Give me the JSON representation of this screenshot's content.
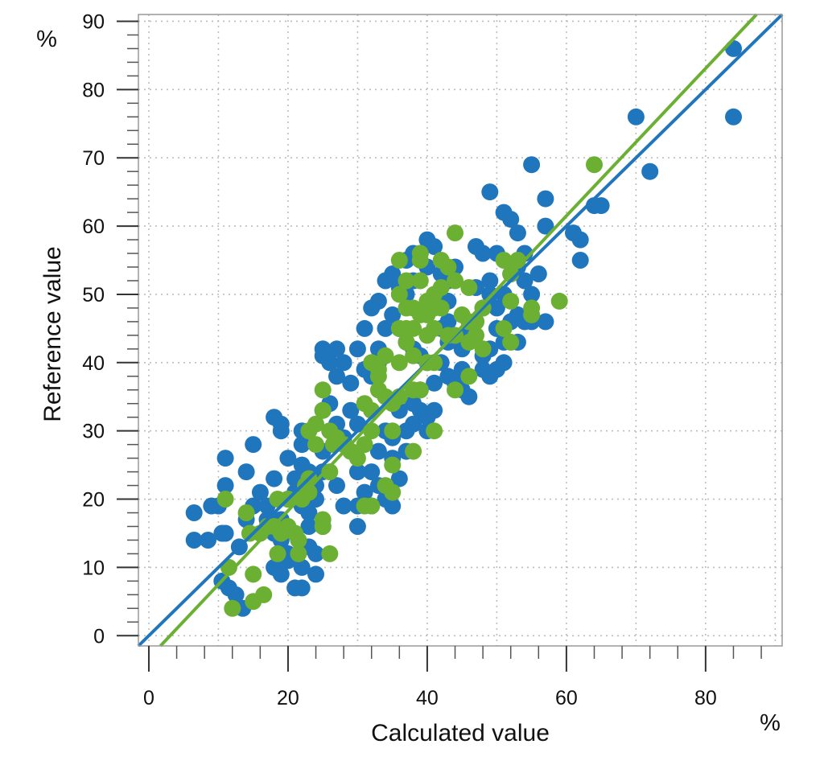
{
  "chart_data": {
    "type": "scatter",
    "xlabel": "Calculated value",
    "ylabel": "Reference value",
    "x_unit": "%",
    "y_unit": "%",
    "xlim": [
      -1.5,
      91
    ],
    "ylim": [
      -1.5,
      91
    ],
    "x_ticks": [
      0,
      20,
      40,
      60,
      80
    ],
    "y_ticks": [
      0,
      10,
      20,
      30,
      40,
      50,
      60,
      70,
      80,
      90
    ],
    "grid": true,
    "legend": "none",
    "series": [
      {
        "color": "#1f76bd",
        "fit_line": {
          "slope": 1.0,
          "intercept": 0.0
        },
        "points": [
          [
            6.5,
            18
          ],
          [
            6.5,
            14
          ],
          [
            8.5,
            14
          ],
          [
            9,
            19
          ],
          [
            10,
            19
          ],
          [
            10.5,
            15
          ],
          [
            11,
            15
          ],
          [
            11,
            22
          ],
          [
            11,
            26
          ],
          [
            10.5,
            8
          ],
          [
            11.5,
            7
          ],
          [
            12.5,
            6
          ],
          [
            13.5,
            4
          ],
          [
            14,
            24
          ],
          [
            15,
            28
          ],
          [
            13,
            13
          ],
          [
            14,
            17
          ],
          [
            15,
            19
          ],
          [
            16,
            21
          ],
          [
            17,
            19
          ],
          [
            18,
            23
          ],
          [
            17,
            17
          ],
          [
            18,
            15
          ],
          [
            19,
            14
          ],
          [
            20,
            12
          ],
          [
            18,
            10
          ],
          [
            19,
            9
          ],
          [
            20,
            11
          ],
          [
            21,
            7
          ],
          [
            22,
            7
          ],
          [
            22,
            10
          ],
          [
            23,
            13
          ],
          [
            23,
            16
          ],
          [
            24,
            9
          ],
          [
            24,
            12
          ],
          [
            25,
            16
          ],
          [
            19,
            17
          ],
          [
            20,
            20
          ],
          [
            21,
            23
          ],
          [
            22,
            25
          ],
          [
            23,
            24
          ],
          [
            22,
            28
          ],
          [
            22,
            30
          ],
          [
            20,
            26
          ],
          [
            19,
            31
          ],
          [
            18,
            32
          ],
          [
            19,
            30
          ],
          [
            21,
            21
          ],
          [
            22,
            19
          ],
          [
            23,
            18
          ],
          [
            24,
            20
          ],
          [
            24,
            22
          ],
          [
            25,
            24
          ],
          [
            25,
            27
          ],
          [
            26,
            30
          ],
          [
            27,
            31
          ],
          [
            25,
            33
          ],
          [
            26,
            34
          ],
          [
            27,
            38
          ],
          [
            25,
            41
          ],
          [
            25,
            42
          ],
          [
            27,
            42
          ],
          [
            26,
            40
          ],
          [
            28,
            40
          ],
          [
            29,
            37
          ],
          [
            29,
            33
          ],
          [
            30,
            31
          ],
          [
            28,
            29
          ],
          [
            29,
            27
          ],
          [
            30,
            24
          ],
          [
            31,
            21
          ],
          [
            30,
            19
          ],
          [
            30,
            16
          ],
          [
            28,
            19
          ],
          [
            27,
            22
          ],
          [
            32,
            19
          ],
          [
            33,
            22
          ],
          [
            32,
            24
          ],
          [
            33,
            27
          ],
          [
            34,
            30
          ],
          [
            35,
            29
          ],
          [
            35,
            26
          ],
          [
            36,
            23
          ],
          [
            35,
            19
          ],
          [
            34,
            20
          ],
          [
            36,
            33
          ],
          [
            37,
            30
          ],
          [
            37,
            27
          ],
          [
            38,
            31
          ],
          [
            38,
            34
          ],
          [
            39,
            33
          ],
          [
            39,
            36
          ],
          [
            40,
            32
          ],
          [
            40,
            30
          ],
          [
            41,
            33
          ],
          [
            41,
            37
          ],
          [
            40,
            40
          ],
          [
            39,
            41
          ],
          [
            38,
            42
          ],
          [
            37,
            43
          ],
          [
            36,
            45
          ],
          [
            35,
            47
          ],
          [
            34,
            45
          ],
          [
            33,
            42
          ],
          [
            33,
            40
          ],
          [
            32,
            38
          ],
          [
            31,
            39
          ],
          [
            30,
            42
          ],
          [
            31,
            45
          ],
          [
            32,
            48
          ],
          [
            33,
            49
          ],
          [
            34,
            52
          ],
          [
            35,
            53
          ],
          [
            36,
            51
          ],
          [
            37,
            50
          ],
          [
            38,
            52
          ],
          [
            37,
            55
          ],
          [
            38,
            56
          ],
          [
            39,
            56
          ],
          [
            40,
            58
          ],
          [
            41,
            57
          ],
          [
            40,
            54
          ],
          [
            42,
            53
          ],
          [
            43,
            52
          ],
          [
            44,
            54
          ],
          [
            43,
            49
          ],
          [
            43,
            46
          ],
          [
            42,
            45
          ],
          [
            43,
            43
          ],
          [
            42,
            40
          ],
          [
            43,
            38
          ],
          [
            44,
            37
          ],
          [
            45,
            36
          ],
          [
            46,
            35
          ],
          [
            45,
            39
          ],
          [
            45,
            42
          ],
          [
            46,
            44
          ],
          [
            47,
            46
          ],
          [
            48,
            48
          ],
          [
            47,
            51
          ],
          [
            47,
            57
          ],
          [
            48,
            56
          ],
          [
            49,
            52
          ],
          [
            49,
            50
          ],
          [
            50,
            48
          ],
          [
            50,
            45
          ],
          [
            49,
            42
          ],
          [
            48,
            41
          ],
          [
            48,
            39
          ],
          [
            49,
            38
          ],
          [
            50,
            39
          ],
          [
            51,
            40
          ],
          [
            51,
            43
          ],
          [
            52,
            46
          ],
          [
            51,
            50
          ],
          [
            52,
            53
          ],
          [
            50,
            56
          ],
          [
            51,
            62
          ],
          [
            49,
            65
          ],
          [
            52,
            61
          ],
          [
            53,
            59
          ],
          [
            54,
            56
          ],
          [
            53,
            54
          ],
          [
            54,
            52
          ],
          [
            53,
            47
          ],
          [
            54,
            46
          ],
          [
            53,
            43
          ],
          [
            55,
            46
          ],
          [
            55,
            50
          ],
          [
            56,
            53
          ],
          [
            55,
            69
          ],
          [
            57,
            64
          ],
          [
            57,
            60
          ],
          [
            57,
            46
          ],
          [
            61,
            59
          ],
          [
            62,
            58
          ],
          [
            62,
            55
          ],
          [
            64,
            63
          ],
          [
            65,
            63
          ],
          [
            70,
            76
          ],
          [
            72,
            68
          ],
          [
            84,
            86
          ],
          [
            84,
            76
          ]
        ]
      },
      {
        "color": "#6cb033",
        "fit_line": {
          "slope": 1.08,
          "intercept": -3.3
        },
        "points": [
          [
            11,
            20
          ],
          [
            11.5,
            10
          ],
          [
            12,
            4
          ],
          [
            14,
            18
          ],
          [
            14.5,
            15
          ],
          [
            15,
            9
          ],
          [
            15,
            5
          ],
          [
            16,
            15
          ],
          [
            17,
            16
          ],
          [
            16.5,
            6
          ],
          [
            18,
            16
          ],
          [
            18.5,
            12
          ],
          [
            18.5,
            20
          ],
          [
            19,
            15
          ],
          [
            20,
            16
          ],
          [
            20,
            20
          ],
          [
            21,
            15
          ],
          [
            21.5,
            12
          ],
          [
            21.5,
            14
          ],
          [
            22,
            20
          ],
          [
            22.5,
            22
          ],
          [
            23,
            23
          ],
          [
            23,
            21
          ],
          [
            23,
            30
          ],
          [
            24,
            31
          ],
          [
            24,
            28
          ],
          [
            25,
            33
          ],
          [
            25,
            36
          ],
          [
            25,
            17
          ],
          [
            25,
            16
          ],
          [
            26,
            12
          ],
          [
            26,
            24
          ],
          [
            26,
            30
          ],
          [
            26.5,
            28
          ],
          [
            27,
            29
          ],
          [
            28,
            28
          ],
          [
            29,
            27
          ],
          [
            30,
            26
          ],
          [
            31,
            19
          ],
          [
            31,
            28
          ],
          [
            31,
            34
          ],
          [
            32,
            30
          ],
          [
            32,
            19
          ],
          [
            32,
            33
          ],
          [
            33,
            36
          ],
          [
            33,
            38
          ],
          [
            32,
            40
          ],
          [
            33,
            39
          ],
          [
            34,
            41
          ],
          [
            34,
            35
          ],
          [
            35,
            34
          ],
          [
            35,
            30
          ],
          [
            35,
            21
          ],
          [
            34,
            22
          ],
          [
            35,
            25
          ],
          [
            36,
            35
          ],
          [
            36,
            40
          ],
          [
            36,
            45
          ],
          [
            36,
            50
          ],
          [
            36,
            55
          ],
          [
            37,
            43
          ],
          [
            37,
            45
          ],
          [
            37,
            48
          ],
          [
            37,
            52
          ],
          [
            38,
            36
          ],
          [
            38,
            41
          ],
          [
            38,
            45
          ],
          [
            38,
            48
          ],
          [
            38,
            27
          ],
          [
            39,
            36
          ],
          [
            39,
            47
          ],
          [
            39,
            52
          ],
          [
            39,
            55
          ],
          [
            39,
            56
          ],
          [
            40,
            44
          ],
          [
            40,
            47
          ],
          [
            40,
            49
          ],
          [
            40,
            40
          ],
          [
            41,
            40
          ],
          [
            41,
            45
          ],
          [
            41,
            48
          ],
          [
            41,
            50
          ],
          [
            41,
            30
          ],
          [
            42,
            51
          ],
          [
            42,
            55
          ],
          [
            42,
            48
          ],
          [
            43,
            44
          ],
          [
            43,
            54
          ],
          [
            44,
            52
          ],
          [
            44,
            44
          ],
          [
            44,
            36
          ],
          [
            44,
            59
          ],
          [
            45,
            47
          ],
          [
            46,
            43
          ],
          [
            46,
            38
          ],
          [
            46,
            46
          ],
          [
            46,
            51
          ],
          [
            47,
            44
          ],
          [
            47,
            46
          ],
          [
            48,
            42
          ],
          [
            48,
            48
          ],
          [
            51,
            45
          ],
          [
            51,
            55
          ],
          [
            52,
            53
          ],
          [
            52,
            49
          ],
          [
            52,
            43
          ],
          [
            53,
            55
          ],
          [
            55,
            48
          ],
          [
            55,
            47
          ],
          [
            59,
            49
          ],
          [
            64,
            69
          ]
        ]
      }
    ]
  }
}
